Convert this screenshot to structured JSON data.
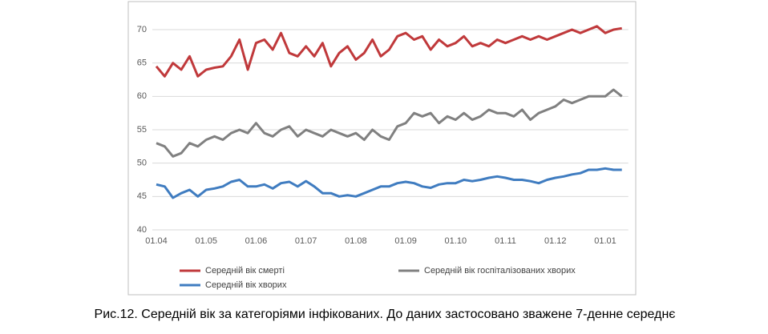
{
  "chart_data": {
    "type": "line",
    "categories": [
      "01.04",
      null,
      null,
      null,
      null,
      null,
      "01.05",
      null,
      null,
      null,
      null,
      null,
      "01.06",
      null,
      null,
      null,
      null,
      null,
      "01.07",
      null,
      null,
      null,
      null,
      null,
      "01.08",
      null,
      null,
      null,
      null,
      null,
      "01.09",
      null,
      null,
      null,
      null,
      null,
      "01.10",
      null,
      null,
      null,
      null,
      null,
      "01.11",
      null,
      null,
      null,
      null,
      null,
      "01.12",
      null,
      null,
      null,
      null,
      null,
      "01.01",
      null,
      null
    ],
    "series": [
      {
        "name": "Середній вік смерті",
        "color": "#c0393b",
        "values": [
          64.5,
          63,
          65,
          64,
          66,
          63,
          64,
          64.3,
          64.5,
          66,
          68.5,
          64,
          68,
          68.5,
          67,
          69.5,
          66.5,
          66,
          67.5,
          66,
          68,
          64.5,
          66.5,
          67.5,
          65.5,
          66.5,
          68.5,
          66,
          67,
          69,
          69.5,
          68.5,
          69,
          67,
          68.5,
          67.5,
          68,
          69,
          67.5,
          68,
          67.5,
          68.5,
          68,
          68.5,
          69,
          68.5,
          69,
          68.5,
          69,
          69.5,
          70,
          69.5,
          70,
          70.5,
          69.5,
          70,
          70.2
        ]
      },
      {
        "name": "Середній вік госпіталізованих хворих",
        "color": "#808080",
        "values": [
          53,
          52.5,
          51,
          51.5,
          53,
          52.5,
          53.5,
          54,
          53.5,
          54.5,
          55,
          54.5,
          56,
          54.5,
          54,
          55,
          55.5,
          54,
          55,
          54.5,
          54,
          55,
          54.5,
          54,
          54.5,
          53.5,
          55,
          54,
          53.5,
          55.5,
          56,
          57.5,
          57,
          57.5,
          56,
          57,
          56.5,
          57.5,
          56.5,
          57,
          58,
          57.5,
          57.5,
          57,
          58,
          56.5,
          57.5,
          58,
          58.5,
          59.5,
          59,
          59.5,
          60,
          60,
          60,
          61,
          60
        ]
      },
      {
        "name": "Середній вік хворих",
        "color": "#3f7cc0",
        "values": [
          46.8,
          46.5,
          44.8,
          45.5,
          46,
          45,
          46,
          46.2,
          46.5,
          47.2,
          47.5,
          46.5,
          46.5,
          46.8,
          46.2,
          47,
          47.2,
          46.5,
          47.3,
          46.5,
          45.5,
          45.5,
          45,
          45.2,
          45,
          45.5,
          46,
          46.5,
          46.5,
          47,
          47.2,
          47,
          46.5,
          46.3,
          46.8,
          47,
          47,
          47.5,
          47.3,
          47.5,
          47.8,
          48,
          47.8,
          47.5,
          47.5,
          47.3,
          47,
          47.5,
          47.8,
          48,
          48.3,
          48.5,
          49,
          49,
          49.2,
          49,
          49
        ]
      }
    ],
    "ylim": [
      40,
      70
    ],
    "yticks": [
      40,
      45,
      50,
      55,
      60,
      65,
      70
    ],
    "grid": true,
    "caption": "Рис.12. Середній вік за категоріями інфікованих. До даних застосовано зважене 7-денне середнє"
  }
}
